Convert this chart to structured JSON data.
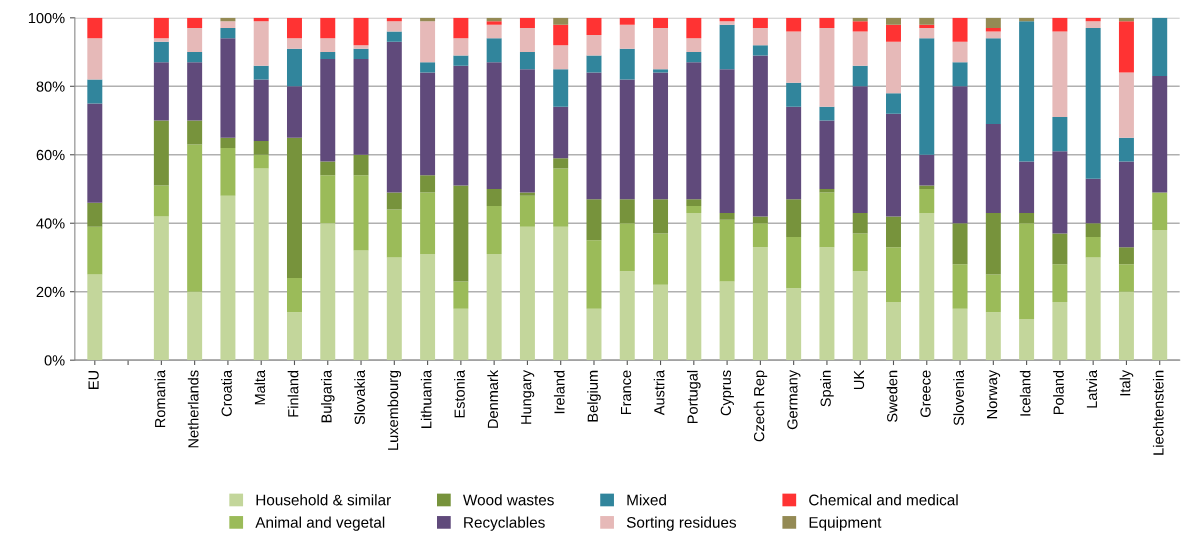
{
  "chart_data": {
    "type": "bar",
    "stacked": true,
    "categories": [
      "EU",
      null,
      "Romania",
      "Netherlands",
      "Croatia",
      "Malta",
      "Finland",
      "Bulgaria",
      "Slovakia",
      "Luxembourg",
      "Lithuania",
      "Estonia",
      "Denmark",
      "Hungary",
      "Ireland",
      "Belgium",
      "France",
      "Austria",
      "Portugal",
      "Cyprus",
      "Czech Rep",
      "Germany",
      "Spain",
      "UK",
      "Sweden",
      "Greece",
      "Slovenia",
      "Norway",
      "Iceland",
      "Poland",
      "Latvia",
      "Italy",
      "Liechtenstein"
    ],
    "series": [
      {
        "name": "Household & similar",
        "color": "#c3d69b",
        "values": [
          25,
          null,
          42,
          20,
          48,
          56,
          14,
          40,
          32,
          30,
          31,
          15,
          31,
          39,
          39,
          15,
          26,
          22,
          43,
          23,
          33,
          21,
          33,
          26,
          17,
          43,
          15,
          14,
          12,
          17,
          30,
          20,
          38
        ]
      },
      {
        "name": "Animal and vegetal",
        "color": "#9bbb59",
        "values": [
          14,
          null,
          9,
          43,
          14,
          4,
          10,
          14,
          22,
          14,
          18,
          8,
          14,
          9,
          17,
          20,
          14,
          15,
          2,
          18,
          7,
          15,
          16,
          11,
          16,
          7,
          13,
          11,
          28,
          11,
          6,
          8,
          11
        ]
      },
      {
        "name": "Wood wastes",
        "color": "#77933c",
        "values": [
          7,
          null,
          19,
          7,
          3,
          4,
          41,
          4,
          6,
          5,
          5,
          28,
          5,
          1,
          3,
          12,
          7,
          10,
          2,
          2,
          2,
          11,
          1,
          6,
          9,
          1,
          12,
          18,
          3,
          9,
          4,
          5,
          0
        ]
      },
      {
        "name": "Recyclables",
        "color": "#604a7b",
        "values": [
          29,
          null,
          17,
          17,
          29,
          18,
          15,
          30,
          28,
          44,
          30,
          35,
          37,
          36,
          15,
          37,
          35,
          37,
          40,
          42,
          47,
          27,
          20,
          37,
          30,
          9,
          40,
          26,
          15,
          24,
          13,
          25,
          34
        ]
      },
      {
        "name": "Mixed",
        "color": "#31859c",
        "values": [
          7,
          null,
          6,
          3,
          3,
          4,
          11,
          2,
          3,
          3,
          3,
          3,
          7,
          5,
          11,
          5,
          9,
          1,
          3,
          13,
          3,
          7,
          4,
          6,
          6,
          34,
          7,
          25,
          41,
          10,
          44,
          7,
          17
        ]
      },
      {
        "name": "Sorting residues",
        "color": "#e6b9b8",
        "values": [
          12,
          null,
          1,
          7,
          2,
          13,
          3,
          4,
          1,
          3,
          12,
          5,
          4,
          7,
          7,
          6,
          7,
          12,
          4,
          1,
          5,
          15,
          23,
          10,
          15,
          3,
          6,
          2,
          0,
          25,
          2,
          19,
          0
        ]
      },
      {
        "name": "Chemical and medical",
        "color": "#ff3333",
        "values": [
          6,
          null,
          6,
          3,
          0,
          1,
          6,
          6,
          8,
          1,
          0,
          6,
          1,
          3,
          6,
          5,
          2,
          3,
          6,
          1,
          3,
          4,
          3,
          3,
          5,
          1,
          7,
          1,
          0,
          4,
          1,
          15,
          0
        ]
      },
      {
        "name": "Equipment",
        "color": "#948a54",
        "values": [
          0,
          null,
          0,
          0,
          1,
          0,
          0,
          0,
          0,
          0,
          1,
          0,
          1,
          0,
          2,
          0,
          0,
          0,
          0,
          0,
          0,
          0,
          0,
          1,
          2,
          2,
          0,
          3,
          1,
          0,
          0,
          1,
          0
        ]
      }
    ],
    "ylim": [
      0,
      100
    ],
    "yticks": [
      {
        "value": 0,
        "label": "0%"
      },
      {
        "value": 20,
        "label": "20%"
      },
      {
        "value": 40,
        "label": "40%"
      },
      {
        "value": 60,
        "label": "60%"
      },
      {
        "value": 80,
        "label": "80%"
      },
      {
        "value": 100,
        "label": "100%"
      }
    ],
    "grid": "y",
    "legend": "bottom"
  }
}
